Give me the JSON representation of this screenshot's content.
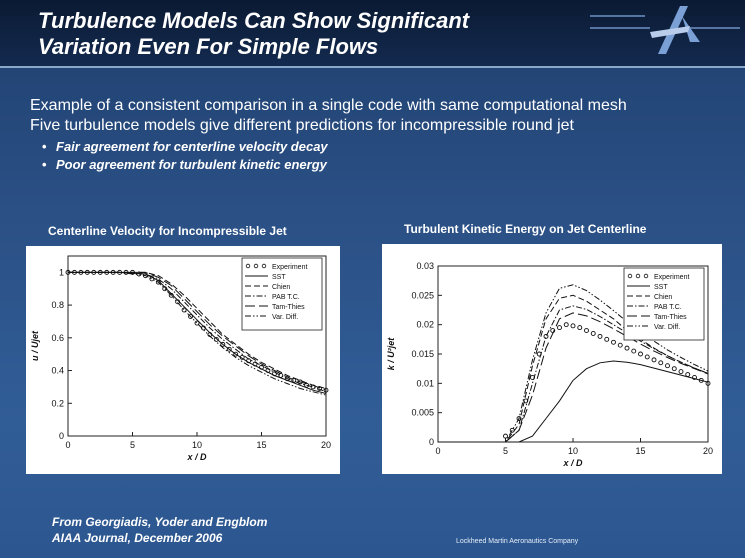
{
  "slide": {
    "title_line1": "Turbulence Models Can Show Significant",
    "title_line2": "Variation Even For Simple Flows",
    "bullets": [
      "Example of a consistent comparison in a single code with same computational mesh",
      "Five turbulence models give different predictions for incompressible round jet"
    ],
    "sub_bullets": [
      "Fair agreement for centerline velocity decay",
      "Poor agreement for turbulent kinetic energy"
    ],
    "citation_line1": "From Georgiadis, Yoder and Engblom",
    "citation_line2": "AIAA Journal, December 2006",
    "footer_company": "Lockheed Martin Aeronautics Company",
    "colors": {
      "background": "#2a4f84",
      "header": "#0b1a33",
      "accent": "#8aa7cc"
    },
    "logo_icon": "lockheed-star-icon"
  },
  "chart_data": [
    {
      "type": "line",
      "title": "Centerline Velocity for Incompressible Jet",
      "xlabel": "x / D",
      "ylabel": "u / Ujet",
      "xlim": [
        0,
        20
      ],
      "ylim": [
        0,
        1.1
      ],
      "x_ticks": [
        "0",
        "5",
        "10",
        "15",
        "20"
      ],
      "y_ticks": [
        "0",
        "0.2",
        "0.4",
        "0.6",
        "0.8",
        "1"
      ],
      "legend_position": "top-right",
      "series": [
        {
          "name": "Experiment",
          "style": "circles",
          "x": [
            0,
            0.5,
            1,
            1.5,
            2,
            2.5,
            3,
            3.5,
            4,
            4.5,
            5,
            5.5,
            6,
            6.5,
            7,
            7.5,
            8,
            8.5,
            9,
            9.5,
            10,
            10.5,
            11,
            11.5,
            12,
            12.5,
            13,
            13.5,
            14,
            14.5,
            15,
            15.5,
            16,
            16.5,
            17,
            17.5,
            18,
            18.5,
            19,
            19.5,
            20
          ],
          "y": [
            1,
            1,
            1,
            1,
            1,
            1,
            1,
            1,
            1,
            1,
            1,
            0.99,
            0.98,
            0.96,
            0.94,
            0.9,
            0.86,
            0.82,
            0.77,
            0.73,
            0.69,
            0.66,
            0.62,
            0.59,
            0.56,
            0.53,
            0.5,
            0.48,
            0.46,
            0.44,
            0.42,
            0.4,
            0.38,
            0.37,
            0.35,
            0.34,
            0.33,
            0.31,
            0.3,
            0.29,
            0.28
          ]
        },
        {
          "name": "SST",
          "style": "solid",
          "x": [
            0,
            4,
            6,
            7,
            8,
            9,
            10,
            11,
            12,
            13,
            14,
            15,
            16,
            17,
            18,
            19,
            20
          ],
          "y": [
            1,
            1,
            0.99,
            0.95,
            0.87,
            0.79,
            0.71,
            0.63,
            0.56,
            0.5,
            0.45,
            0.41,
            0.37,
            0.34,
            0.31,
            0.28,
            0.26
          ]
        },
        {
          "name": "Chien",
          "style": "dash",
          "x": [
            0,
            4,
            6,
            7,
            8,
            9,
            10,
            11,
            12,
            13,
            14,
            15,
            16,
            17,
            18,
            19,
            20
          ],
          "y": [
            1,
            1,
            1,
            0.98,
            0.93,
            0.86,
            0.78,
            0.7,
            0.62,
            0.56,
            0.5,
            0.45,
            0.41,
            0.37,
            0.34,
            0.31,
            0.29
          ]
        },
        {
          "name": "PAB T.C.",
          "style": "dashdot",
          "x": [
            0,
            4,
            6,
            7,
            8,
            9,
            10,
            11,
            12,
            13,
            14,
            15,
            16,
            17,
            18,
            19,
            20
          ],
          "y": [
            1,
            1,
            0.99,
            0.96,
            0.9,
            0.82,
            0.74,
            0.66,
            0.59,
            0.53,
            0.47,
            0.43,
            0.39,
            0.35,
            0.32,
            0.3,
            0.27
          ]
        },
        {
          "name": "Tam-Thies",
          "style": "longdash",
          "x": [
            0,
            4,
            6,
            7,
            8,
            9,
            10,
            11,
            12,
            13,
            14,
            15,
            16,
            17,
            18,
            19,
            20
          ],
          "y": [
            1,
            1,
            1,
            0.97,
            0.92,
            0.84,
            0.76,
            0.68,
            0.61,
            0.55,
            0.49,
            0.44,
            0.4,
            0.36,
            0.33,
            0.31,
            0.28
          ]
        },
        {
          "name": "Var. Diff.",
          "style": "dashdotdot",
          "x": [
            0,
            4,
            6,
            7,
            8,
            9,
            10,
            11,
            12,
            13,
            14,
            15,
            16,
            17,
            18,
            19,
            20
          ],
          "y": [
            1,
            1,
            0.98,
            0.94,
            0.86,
            0.77,
            0.69,
            0.61,
            0.54,
            0.48,
            0.43,
            0.39,
            0.35,
            0.32,
            0.29,
            0.27,
            0.25
          ]
        }
      ]
    },
    {
      "type": "line",
      "title": "Turbulent Kinetic Energy on Jet Centerline",
      "xlabel": "x / D",
      "ylabel": "k / U²jet",
      "xlim": [
        0,
        20
      ],
      "ylim": [
        0,
        0.03
      ],
      "x_ticks": [
        "0",
        "5",
        "10",
        "15",
        "20"
      ],
      "y_ticks": [
        "0",
        "0.005",
        "0.01",
        "0.015",
        "0.02",
        "0.025",
        "0.03"
      ],
      "legend_position": "top-right",
      "series": [
        {
          "name": "Experiment",
          "style": "circles",
          "x": [
            5,
            5.5,
            6,
            6.5,
            7,
            7.5,
            8,
            8.5,
            9,
            9.5,
            10,
            10.5,
            11,
            11.5,
            12,
            12.5,
            13,
            13.5,
            14,
            14.5,
            15,
            15.5,
            16,
            16.5,
            17,
            17.5,
            18,
            18.5,
            19,
            19.5,
            20
          ],
          "y": [
            0.001,
            0.002,
            0.004,
            0.007,
            0.011,
            0.015,
            0.018,
            0.019,
            0.0195,
            0.02,
            0.0198,
            0.0195,
            0.019,
            0.0185,
            0.018,
            0.0175,
            0.017,
            0.0165,
            0.016,
            0.0155,
            0.015,
            0.0145,
            0.014,
            0.0135,
            0.013,
            0.0125,
            0.012,
            0.0115,
            0.011,
            0.0105,
            0.01
          ]
        },
        {
          "name": "SST",
          "style": "solid",
          "x": [
            0,
            6,
            7,
            8,
            9,
            10,
            11,
            12,
            13,
            14,
            15,
            16,
            17,
            18,
            19,
            20
          ],
          "y": [
            0,
            0,
            0.001,
            0.004,
            0.007,
            0.0105,
            0.0125,
            0.0135,
            0.0138,
            0.0136,
            0.0132,
            0.0126,
            0.012,
            0.0114,
            0.0108,
            0.0102
          ]
        },
        {
          "name": "Chien",
          "style": "dash",
          "x": [
            0,
            5,
            6,
            7,
            8,
            9,
            10,
            11,
            12,
            13,
            14,
            15,
            16,
            17,
            18,
            19,
            20
          ],
          "y": [
            0,
            0,
            0.003,
            0.013,
            0.021,
            0.0245,
            0.025,
            0.024,
            0.0225,
            0.021,
            0.019,
            0.0175,
            0.016,
            0.0147,
            0.0136,
            0.0126,
            0.0117
          ]
        },
        {
          "name": "PAB T.C.",
          "style": "dashdot",
          "x": [
            0,
            5,
            6,
            7,
            8,
            9,
            10,
            11,
            12,
            13,
            14,
            15,
            16,
            17,
            18,
            19,
            20
          ],
          "y": [
            0,
            0,
            0.002,
            0.01,
            0.018,
            0.0225,
            0.0232,
            0.0226,
            0.0214,
            0.02,
            0.0186,
            0.0172,
            0.0159,
            0.0147,
            0.0136,
            0.0126,
            0.0117
          ]
        },
        {
          "name": "Tam-Thies",
          "style": "longdash",
          "x": [
            0,
            5,
            6,
            7,
            8,
            9,
            10,
            11,
            12,
            13,
            14,
            15,
            16,
            17,
            18,
            19,
            20
          ],
          "y": [
            0,
            0,
            0.002,
            0.008,
            0.016,
            0.021,
            0.022,
            0.0215,
            0.0205,
            0.0193,
            0.018,
            0.0167,
            0.0155,
            0.0144,
            0.0134,
            0.0125,
            0.0116
          ]
        },
        {
          "name": "Var. Diff.",
          "style": "dashdotdot",
          "x": [
            0,
            5,
            6,
            7,
            8,
            9,
            10,
            11,
            12,
            13,
            14,
            15,
            16,
            17,
            18,
            19,
            20
          ],
          "y": [
            0,
            0,
            0.004,
            0.014,
            0.022,
            0.0262,
            0.0268,
            0.0258,
            0.0242,
            0.0224,
            0.0205,
            0.0188,
            0.0172,
            0.0157,
            0.0144,
            0.0132,
            0.0121
          ]
        }
      ]
    }
  ]
}
